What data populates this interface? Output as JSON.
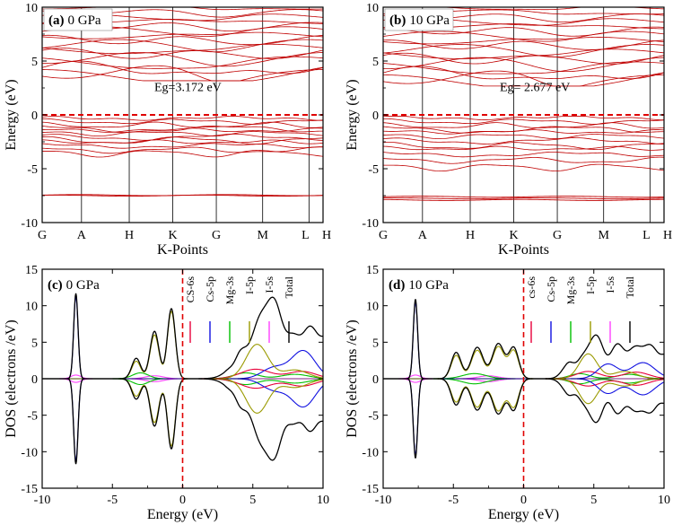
{
  "chart_data": [
    {
      "id": "a",
      "type": "line",
      "subtype": "band-structure",
      "panel_label": "(a)",
      "title": "0 GPa",
      "ylabel": "Energy  (eV)",
      "xlabel": "K-Points",
      "kpoints": [
        "G",
        "A",
        "H",
        "K",
        "G",
        "M",
        "L",
        "H"
      ],
      "kpos": [
        0,
        0.14,
        0.31,
        0.465,
        0.62,
        0.785,
        0.95,
        1.0
      ],
      "ylim": [
        -10,
        10
      ],
      "yticks": [
        "10",
        "5",
        "0",
        "-5",
        "-10"
      ],
      "ytick_values": [
        10,
        5,
        0,
        -5,
        -10
      ],
      "annotation": "Eg=3.172 eV",
      "fermi_level": 0,
      "band_color": "#c00000",
      "bands": {
        "core": [
          -7.45,
          -7.5
        ],
        "valence": [
          -0.2,
          -0.45,
          -0.75,
          -1.05,
          -1.3,
          -1.55,
          -1.85,
          -2.1,
          -2.4,
          -2.7,
          -3.05,
          -3.3
        ],
        "conduction_min": 3.172,
        "conduction_top": 9.9,
        "conduction_count": 16
      }
    },
    {
      "id": "b",
      "type": "line",
      "subtype": "band-structure",
      "panel_label": "(b)",
      "title": "10 GPa",
      "ylabel": "Energy  (eV)",
      "xlabel": "K-Points",
      "kpoints": [
        "G",
        "A",
        "H",
        "K",
        "G",
        "M",
        "L",
        "H"
      ],
      "kpos": [
        0,
        0.14,
        0.31,
        0.465,
        0.62,
        0.785,
        0.95,
        1.0
      ],
      "ylim": [
        -10,
        10
      ],
      "yticks": [
        "10",
        "5",
        "0",
        "-5",
        "-10"
      ],
      "ytick_values": [
        10,
        5,
        0,
        -5,
        -10
      ],
      "annotation": "Eg= 2.677 eV",
      "fermi_level": 0,
      "band_color": "#c00000",
      "bands": {
        "core": [
          -7.6,
          -7.75,
          -7.9
        ],
        "valence": [
          -0.15,
          -0.45,
          -0.8,
          -1.1,
          -1.45,
          -1.8,
          -2.2,
          -2.6,
          -3.0,
          -3.5,
          -4.0,
          -4.6
        ],
        "conduction_min": 2.677,
        "conduction_top": 9.9,
        "conduction_count": 17
      }
    },
    {
      "id": "c",
      "type": "line",
      "subtype": "dos",
      "panel_label": "(c)",
      "title": "0 GPa",
      "ylabel": "DOS (electrons /eV)",
      "xlabel": "Energy (eV)",
      "xlim": [
        -10,
        10
      ],
      "ylim": [
        -15,
        15
      ],
      "xticks": [
        "-10",
        "-5",
        "0",
        "5",
        "10"
      ],
      "xtick_values": [
        -10,
        -5,
        0,
        5,
        10
      ],
      "yticks": [
        "15",
        "10",
        "5",
        "0",
        "-5",
        "-10",
        "-15"
      ],
      "ytick_values": [
        15,
        10,
        5,
        0,
        -5,
        -10,
        -15
      ],
      "fermi_level": 0,
      "legend": [
        "CS-6s",
        "Cs-5p",
        "Mg-3s",
        "I-5p",
        "I-5s",
        "Total"
      ],
      "legend_colors": [
        "#e8003a",
        "#1010e0",
        "#00c000",
        "#9a9a00",
        "#ff40ff",
        "#000000"
      ],
      "series": [
        {
          "name": "Total",
          "color": "#000000",
          "peaks": [
            [
              -7.6,
              11.7,
              0.22
            ],
            [
              -3.3,
              2.8,
              0.45
            ],
            [
              -2.0,
              6.5,
              0.45
            ],
            [
              -0.8,
              9.6,
              0.4
            ],
            [
              4.5,
              3.5,
              1.3
            ],
            [
              6.3,
              10.3,
              1.2
            ],
            [
              8.8,
              6.2,
              1.4
            ],
            [
              10.5,
              3.5,
              1.2
            ]
          ]
        },
        {
          "name": "Cs-5p",
          "color": "#1010e0",
          "peaks": [
            [
              -7.6,
              11.3,
              0.22
            ],
            [
              6.5,
              1.5,
              1.2
            ],
            [
              8.6,
              3.8,
              1.2
            ]
          ]
        },
        {
          "name": "I-5p",
          "color": "#9a9a00",
          "peaks": [
            [
              -3.3,
              2.4,
              0.45
            ],
            [
              -2.0,
              6.0,
              0.45
            ],
            [
              -0.8,
              9.2,
              0.4
            ],
            [
              5.3,
              4.7,
              1.1
            ],
            [
              8.0,
              1.2,
              1.3
            ]
          ]
        },
        {
          "name": "CS-6s",
          "color": "#e8003a",
          "peaks": [
            [
              5.2,
              1.3,
              1.5
            ],
            [
              8.5,
              1.0,
              1.4
            ]
          ]
        },
        {
          "name": "Mg-3s",
          "color": "#00c000",
          "peaks": [
            [
              -3.0,
              0.8,
              0.8
            ],
            [
              4.5,
              0.8,
              1.2
            ],
            [
              8.0,
              0.6,
              1.4
            ]
          ]
        },
        {
          "name": "I-5s",
          "color": "#ff40ff",
          "peaks": [
            [
              -7.6,
              0.5,
              0.5
            ],
            [
              -2.0,
              0.4,
              0.9
            ]
          ]
        }
      ]
    },
    {
      "id": "d",
      "type": "line",
      "subtype": "dos",
      "panel_label": "(d)",
      "title": "10 GPa",
      "ylabel": "DOS (electrons /eV)",
      "xlabel": "Energy (eV)",
      "xlim": [
        -10,
        10
      ],
      "ylim": [
        -15,
        15
      ],
      "xticks": [
        "-10",
        "-5",
        "0",
        "5",
        "10"
      ],
      "xtick_values": [
        -10,
        -5,
        0,
        5,
        10
      ],
      "yticks": [
        "15",
        "10",
        "5",
        "0",
        "-5",
        "-10",
        "-15"
      ],
      "ytick_values": [
        15,
        10,
        5,
        0,
        -5,
        -10,
        -15
      ],
      "fermi_level": 0,
      "legend": [
        "cs-6s",
        "Cs-5p",
        "Mg-3s",
        "I-5p",
        "I-5s",
        "Total"
      ],
      "legend_colors": [
        "#e8003a",
        "#1010e0",
        "#00c000",
        "#9a9a00",
        "#ff40ff",
        "#000000"
      ],
      "series": [
        {
          "name": "Total",
          "color": "#000000",
          "peaks": [
            [
              -7.7,
              10.9,
              0.22
            ],
            [
              -4.8,
              3.6,
              0.5
            ],
            [
              -3.3,
              4.3,
              0.6
            ],
            [
              -1.8,
              4.8,
              0.6
            ],
            [
              -0.7,
              4.2,
              0.5
            ],
            [
              3.3,
              2.2,
              0.7
            ],
            [
              5.0,
              5.8,
              0.9
            ],
            [
              6.8,
              4.2,
              0.9
            ],
            [
              8.5,
              4.5,
              1.0
            ],
            [
              10.0,
              3.0,
              0.9
            ]
          ]
        },
        {
          "name": "Cs-5p",
          "color": "#1010e0",
          "peaks": [
            [
              -7.7,
              10.5,
              0.22
            ],
            [
              6.0,
              2.0,
              1.0
            ],
            [
              8.5,
              2.2,
              1.2
            ]
          ]
        },
        {
          "name": "I-5p",
          "color": "#9a9a00",
          "peaks": [
            [
              -4.8,
              3.2,
              0.5
            ],
            [
              -3.3,
              3.9,
              0.6
            ],
            [
              -1.8,
              4.4,
              0.6
            ],
            [
              -0.7,
              3.8,
              0.5
            ],
            [
              4.6,
              3.4,
              0.9
            ],
            [
              7.2,
              1.0,
              1.2
            ]
          ]
        },
        {
          "name": "CS-6s",
          "color": "#e8003a",
          "peaks": [
            [
              4.6,
              1.0,
              1.2
            ],
            [
              8.0,
              0.9,
              1.3
            ]
          ]
        },
        {
          "name": "Mg-3s",
          "color": "#00c000",
          "peaks": [
            [
              -3.5,
              0.7,
              1.2
            ],
            [
              4.0,
              0.7,
              1.0
            ],
            [
              7.5,
              0.6,
              1.2
            ]
          ]
        },
        {
          "name": "I-5s",
          "color": "#ff40ff",
          "peaks": [
            [
              -7.7,
              0.5,
              0.5
            ],
            [
              -2.5,
              0.4,
              1.0
            ]
          ]
        }
      ]
    }
  ]
}
